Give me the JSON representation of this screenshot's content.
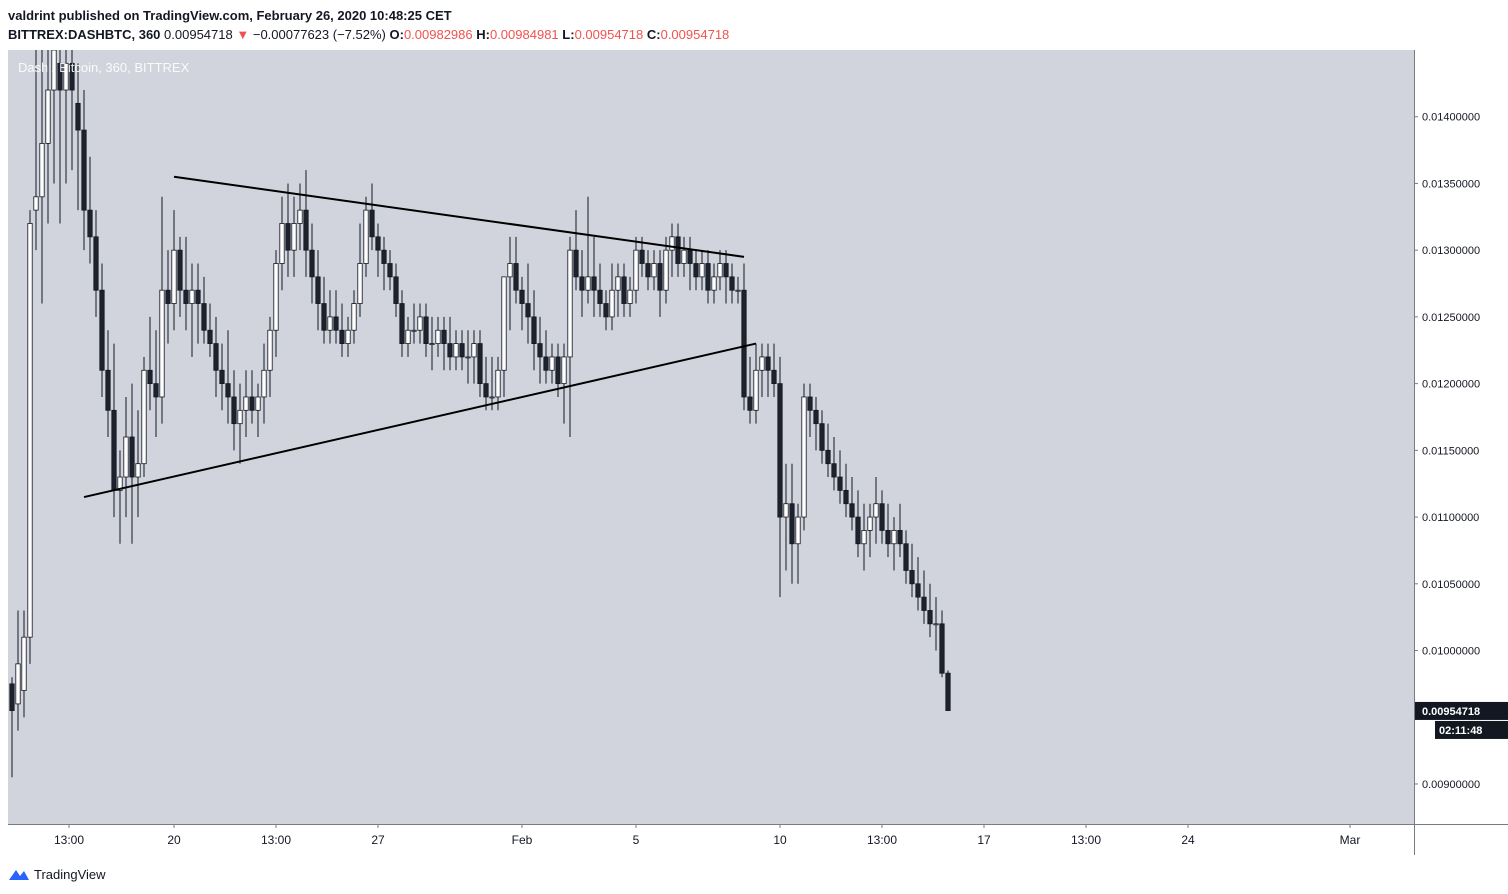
{
  "header": {
    "publisher_line": "valdrint published on TradingView.com, February 26, 2020 10:48:25 CET",
    "symbol": "BITTREX:DASHBTC, 360",
    "last": "0.00954718",
    "change": "−0.00077623 (−7.52%)",
    "open_label": "O:",
    "open": "0.00982986",
    "high_label": "H:",
    "high": "0.00984981",
    "low_label": "L:",
    "low": "0.00954718",
    "close_label": "C:",
    "close": "0.00954718"
  },
  "watermark": "Dash / Bitcoin, 360, BITTREX",
  "footer": {
    "brand": "TradingView"
  },
  "colors": {
    "background": "#d1d4dc",
    "candle_up": "#ffffff",
    "candle_down": "#1e222d",
    "wick": "#131722",
    "change_red": "#ef5350",
    "price_label_bg": "#131722"
  },
  "chart_data": {
    "type": "candlestick",
    "title": "Dash / Bitcoin, 360, BITTREX",
    "interval": "360",
    "ylim": [
      0.0087,
      0.0145
    ],
    "y_ticks": [
      "0.01400000",
      "0.01350000",
      "0.01300000",
      "0.01250000",
      "0.01200000",
      "0.01150000",
      "0.01100000",
      "0.01050000",
      "0.01000000",
      "0.00900000"
    ],
    "x_ticks": [
      "13:00",
      "20",
      "13:00",
      "27",
      "Feb",
      "5",
      "10",
      "13:00",
      "17",
      "13:00",
      "24",
      "Mar"
    ],
    "last_price_label": "0.00954718",
    "countdown_label": "02:11:48",
    "candles": [
      [
        0.00975,
        0.0098,
        0.00905,
        0.00955
      ],
      [
        0.0096,
        0.0103,
        0.0094,
        0.0099
      ],
      [
        0.0097,
        0.0103,
        0.0095,
        0.0101
      ],
      [
        0.0101,
        0.0133,
        0.0099,
        0.0132
      ],
      [
        0.0133,
        0.0145,
        0.013,
        0.0134
      ],
      [
        0.0134,
        0.0145,
        0.0126,
        0.0138
      ],
      [
        0.0138,
        0.0145,
        0.0132,
        0.0142
      ],
      [
        0.0142,
        0.0145,
        0.0135,
        0.0145
      ],
      [
        0.0144,
        0.0145,
        0.0132,
        0.0142
      ],
      [
        0.0142,
        0.0145,
        0.0135,
        0.0144
      ],
      [
        0.0144,
        0.0145,
        0.0136,
        0.0142
      ],
      [
        0.0141,
        0.0144,
        0.0133,
        0.0139
      ],
      [
        0.0139,
        0.0142,
        0.013,
        0.0133
      ],
      [
        0.0133,
        0.0137,
        0.0129,
        0.0131
      ],
      [
        0.0131,
        0.0133,
        0.0125,
        0.0127
      ],
      [
        0.0127,
        0.0129,
        0.0119,
        0.0121
      ],
      [
        0.0121,
        0.0124,
        0.0116,
        0.0118
      ],
      [
        0.0118,
        0.0123,
        0.011,
        0.0112
      ],
      [
        0.0112,
        0.0115,
        0.0108,
        0.0113
      ],
      [
        0.0113,
        0.0119,
        0.011,
        0.0116
      ],
      [
        0.0116,
        0.012,
        0.0108,
        0.0113
      ],
      [
        0.0113,
        0.0118,
        0.011,
        0.0114
      ],
      [
        0.0114,
        0.0122,
        0.0113,
        0.0121
      ],
      [
        0.0121,
        0.0125,
        0.0118,
        0.012
      ],
      [
        0.012,
        0.0124,
        0.0116,
        0.0119
      ],
      [
        0.0119,
        0.0134,
        0.0117,
        0.0127
      ],
      [
        0.0127,
        0.013,
        0.0123,
        0.0126
      ],
      [
        0.0126,
        0.0133,
        0.0124,
        0.013
      ],
      [
        0.013,
        0.0131,
        0.0125,
        0.0127
      ],
      [
        0.0127,
        0.0131,
        0.0124,
        0.0126
      ],
      [
        0.0126,
        0.0129,
        0.0122,
        0.0127
      ],
      [
        0.0127,
        0.0129,
        0.0123,
        0.0126
      ],
      [
        0.0126,
        0.0128,
        0.0123,
        0.0124
      ],
      [
        0.0124,
        0.0126,
        0.0122,
        0.0123
      ],
      [
        0.0123,
        0.0125,
        0.0119,
        0.0121
      ],
      [
        0.0121,
        0.0123,
        0.0118,
        0.012
      ],
      [
        0.012,
        0.0124,
        0.0117,
        0.0119
      ],
      [
        0.0119,
        0.0121,
        0.0115,
        0.0117
      ],
      [
        0.0117,
        0.012,
        0.0114,
        0.0118
      ],
      [
        0.0118,
        0.0121,
        0.0116,
        0.0119
      ],
      [
        0.0119,
        0.0121,
        0.0117,
        0.0118
      ],
      [
        0.0118,
        0.012,
        0.0116,
        0.0119
      ],
      [
        0.0119,
        0.0123,
        0.0117,
        0.0121
      ],
      [
        0.0121,
        0.0125,
        0.0119,
        0.0124
      ],
      [
        0.0124,
        0.013,
        0.0122,
        0.0129
      ],
      [
        0.0129,
        0.0134,
        0.0127,
        0.0132
      ],
      [
        0.0132,
        0.0135,
        0.0128,
        0.013
      ],
      [
        0.013,
        0.0134,
        0.0128,
        0.0132
      ],
      [
        0.0132,
        0.0135,
        0.013,
        0.0133
      ],
      [
        0.0133,
        0.0136,
        0.0128,
        0.013
      ],
      [
        0.013,
        0.0132,
        0.0126,
        0.0128
      ],
      [
        0.0128,
        0.013,
        0.0124,
        0.0126
      ],
      [
        0.0126,
        0.0128,
        0.0123,
        0.0124
      ],
      [
        0.0124,
        0.0127,
        0.0123,
        0.0125
      ],
      [
        0.0125,
        0.0127,
        0.0123,
        0.0124
      ],
      [
        0.0124,
        0.0126,
        0.0122,
        0.0123
      ],
      [
        0.0123,
        0.0125,
        0.0122,
        0.0124
      ],
      [
        0.0124,
        0.0127,
        0.0123,
        0.0126
      ],
      [
        0.0126,
        0.0132,
        0.0125,
        0.0129
      ],
      [
        0.0129,
        0.0134,
        0.0128,
        0.0133
      ],
      [
        0.0133,
        0.0135,
        0.013,
        0.0131
      ],
      [
        0.0131,
        0.0132,
        0.0128,
        0.013
      ],
      [
        0.013,
        0.0131,
        0.0127,
        0.0129
      ],
      [
        0.0129,
        0.013,
        0.0127,
        0.0128
      ],
      [
        0.0128,
        0.0129,
        0.0125,
        0.0126
      ],
      [
        0.0126,
        0.0127,
        0.0122,
        0.0123
      ],
      [
        0.0123,
        0.0125,
        0.0122,
        0.0124
      ],
      [
        0.0124,
        0.0126,
        0.0123,
        0.0124
      ],
      [
        0.0124,
        0.0126,
        0.0123,
        0.0125
      ],
      [
        0.0125,
        0.0126,
        0.0122,
        0.0123
      ],
      [
        0.0123,
        0.0125,
        0.0121,
        0.0123
      ],
      [
        0.0123,
        0.0125,
        0.0122,
        0.0124
      ],
      [
        0.0124,
        0.0125,
        0.0121,
        0.0123
      ],
      [
        0.0123,
        0.0125,
        0.0121,
        0.0122
      ],
      [
        0.0122,
        0.0124,
        0.0121,
        0.0123
      ],
      [
        0.0123,
        0.0124,
        0.0121,
        0.0122
      ],
      [
        0.0122,
        0.0124,
        0.012,
        0.0122
      ],
      [
        0.0122,
        0.0124,
        0.012,
        0.0123
      ],
      [
        0.0123,
        0.0124,
        0.0119,
        0.012
      ],
      [
        0.012,
        0.0122,
        0.0118,
        0.0119
      ],
      [
        0.0119,
        0.0122,
        0.0118,
        0.0119
      ],
      [
        0.0119,
        0.0122,
        0.0118,
        0.0121
      ],
      [
        0.0121,
        0.0128,
        0.0119,
        0.0128
      ],
      [
        0.0128,
        0.0131,
        0.0124,
        0.0129
      ],
      [
        0.0129,
        0.0131,
        0.0126,
        0.0127
      ],
      [
        0.0127,
        0.0128,
        0.0124,
        0.0126
      ],
      [
        0.0126,
        0.0129,
        0.0123,
        0.0125
      ],
      [
        0.0125,
        0.0127,
        0.0121,
        0.0123
      ],
      [
        0.0123,
        0.0125,
        0.012,
        0.0122
      ],
      [
        0.0122,
        0.0124,
        0.012,
        0.0121
      ],
      [
        0.0121,
        0.0123,
        0.012,
        0.0122
      ],
      [
        0.0122,
        0.0123,
        0.0119,
        0.012
      ],
      [
        0.012,
        0.0123,
        0.0117,
        0.0122
      ],
      [
        0.0122,
        0.0131,
        0.0116,
        0.013
      ],
      [
        0.013,
        0.0133,
        0.0127,
        0.0128
      ],
      [
        0.0128,
        0.013,
        0.0125,
        0.0127
      ],
      [
        0.0127,
        0.0134,
        0.0126,
        0.0128
      ],
      [
        0.0128,
        0.0131,
        0.0125,
        0.0127
      ],
      [
        0.0127,
        0.0129,
        0.0125,
        0.0126
      ],
      [
        0.0126,
        0.0127,
        0.0124,
        0.0125
      ],
      [
        0.0125,
        0.0129,
        0.0124,
        0.0127
      ],
      [
        0.0127,
        0.0129,
        0.0125,
        0.0128
      ],
      [
        0.0128,
        0.0129,
        0.0125,
        0.0126
      ],
      [
        0.0126,
        0.0128,
        0.0125,
        0.0127
      ],
      [
        0.0127,
        0.0131,
        0.0126,
        0.013
      ],
      [
        0.013,
        0.0131,
        0.0128,
        0.0129
      ],
      [
        0.0129,
        0.013,
        0.0127,
        0.0128
      ],
      [
        0.0128,
        0.013,
        0.0127,
        0.0129
      ],
      [
        0.0129,
        0.013,
        0.0125,
        0.0127
      ],
      [
        0.0127,
        0.0131,
        0.0126,
        0.013
      ],
      [
        0.013,
        0.0132,
        0.0128,
        0.0131
      ],
      [
        0.0131,
        0.0132,
        0.0128,
        0.0129
      ],
      [
        0.0129,
        0.0131,
        0.0128,
        0.013
      ],
      [
        0.013,
        0.0131,
        0.0127,
        0.0129
      ],
      [
        0.0129,
        0.013,
        0.0127,
        0.0128
      ],
      [
        0.0128,
        0.013,
        0.0127,
        0.0129
      ],
      [
        0.0129,
        0.013,
        0.0126,
        0.0127
      ],
      [
        0.0127,
        0.0129,
        0.0126,
        0.0128
      ],
      [
        0.0128,
        0.013,
        0.0127,
        0.0129
      ],
      [
        0.0129,
        0.013,
        0.0126,
        0.0128
      ],
      [
        0.0128,
        0.0129,
        0.0126,
        0.0127
      ],
      [
        0.0127,
        0.0128,
        0.0126,
        0.0127
      ],
      [
        0.0127,
        0.0129,
        0.0118,
        0.0119
      ],
      [
        0.0119,
        0.0122,
        0.0117,
        0.0118
      ],
      [
        0.0118,
        0.0123,
        0.0117,
        0.0121
      ],
      [
        0.0121,
        0.0123,
        0.0119,
        0.0122
      ],
      [
        0.0122,
        0.0123,
        0.0119,
        0.0121
      ],
      [
        0.0121,
        0.0123,
        0.0119,
        0.012
      ],
      [
        0.012,
        0.0122,
        0.0104,
        0.011
      ],
      [
        0.011,
        0.0114,
        0.0106,
        0.0111
      ],
      [
        0.0111,
        0.0114,
        0.0105,
        0.0108
      ],
      [
        0.0108,
        0.0111,
        0.0105,
        0.011
      ],
      [
        0.011,
        0.012,
        0.0109,
        0.0119
      ],
      [
        0.0119,
        0.012,
        0.0116,
        0.0118
      ],
      [
        0.0118,
        0.0119,
        0.0115,
        0.0117
      ],
      [
        0.0117,
        0.0118,
        0.0114,
        0.0115
      ],
      [
        0.0115,
        0.0117,
        0.0113,
        0.0114
      ],
      [
        0.0114,
        0.0116,
        0.0112,
        0.0113
      ],
      [
        0.0113,
        0.0115,
        0.0111,
        0.0112
      ],
      [
        0.0112,
        0.0114,
        0.011,
        0.0111
      ],
      [
        0.0111,
        0.0113,
        0.0109,
        0.011
      ],
      [
        0.011,
        0.0112,
        0.0107,
        0.0108
      ],
      [
        0.0108,
        0.0111,
        0.0106,
        0.0109
      ],
      [
        0.0109,
        0.0111,
        0.0107,
        0.011
      ],
      [
        0.011,
        0.0113,
        0.0108,
        0.0111
      ],
      [
        0.0111,
        0.0112,
        0.0108,
        0.0109
      ],
      [
        0.0109,
        0.0111,
        0.0107,
        0.0108
      ],
      [
        0.0108,
        0.011,
        0.0106,
        0.0109
      ],
      [
        0.0109,
        0.0111,
        0.0107,
        0.0108
      ],
      [
        0.0108,
        0.0109,
        0.0105,
        0.0106
      ],
      [
        0.0106,
        0.0108,
        0.0104,
        0.0105
      ],
      [
        0.0105,
        0.0107,
        0.0103,
        0.0104
      ],
      [
        0.0104,
        0.0106,
        0.0102,
        0.0103
      ],
      [
        0.0103,
        0.0105,
        0.0101,
        0.0102
      ],
      [
        0.0102,
        0.0104,
        0.01,
        0.0102
      ],
      [
        0.0102,
        0.0103,
        0.0098,
        0.00983
      ],
      [
        0.00983,
        0.00985,
        0.00955,
        0.00955
      ]
    ],
    "trendlines": [
      {
        "name": "upper-trendline",
        "from": [
          27,
          0.01355
        ],
        "to": [
          122,
          0.01295
        ]
      },
      {
        "name": "lower-trendline",
        "from": [
          12,
          0.01115
        ],
        "to": [
          124,
          0.0123
        ]
      }
    ]
  }
}
